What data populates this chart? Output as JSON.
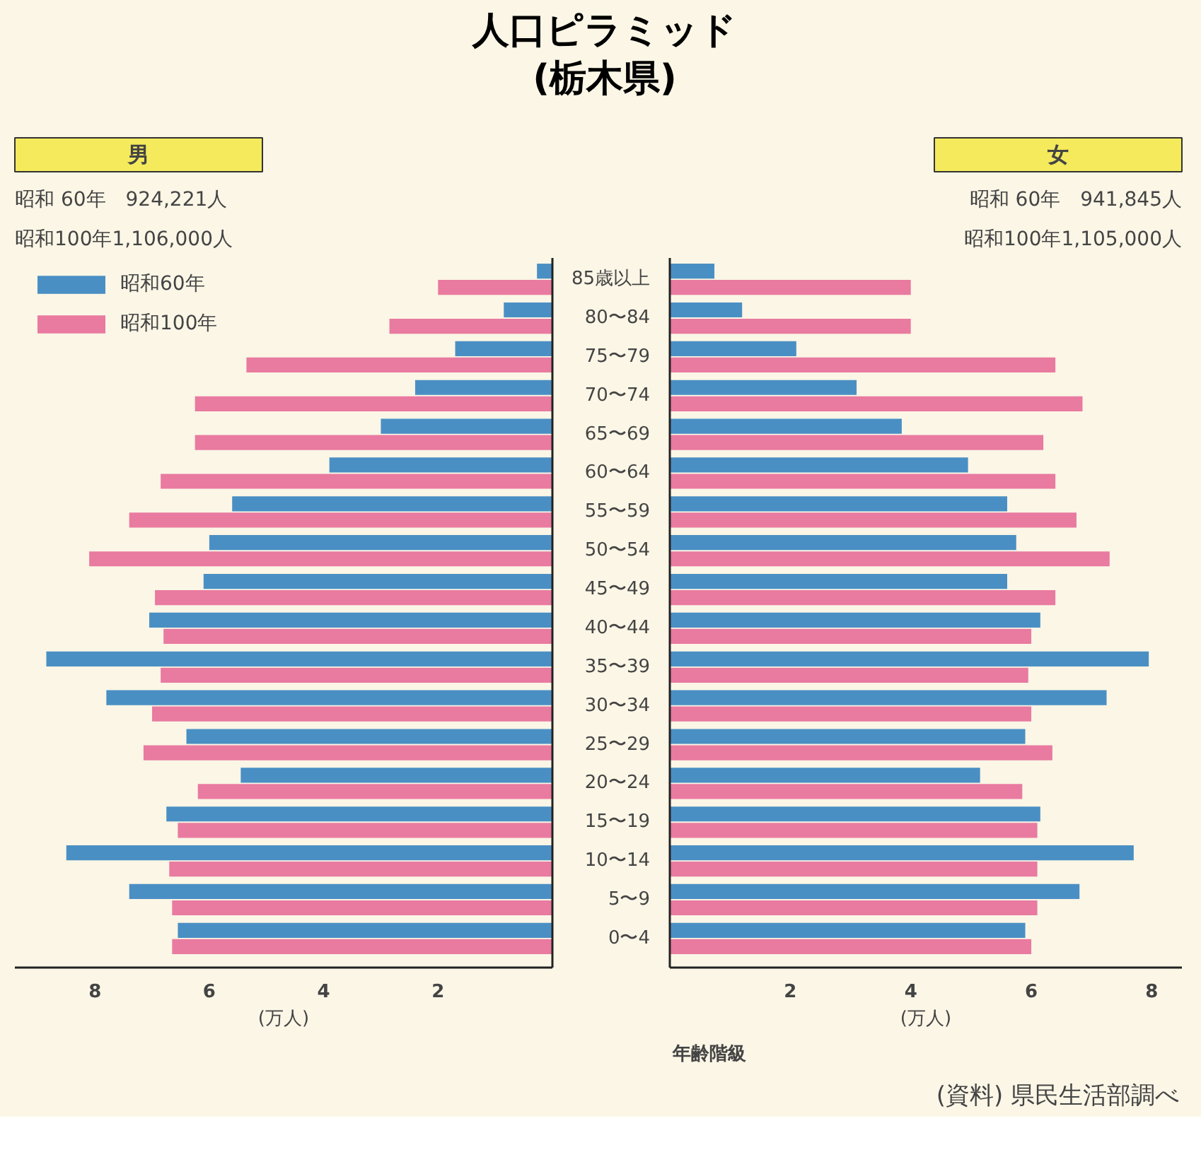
{
  "chart_data": [
    {
      "type": "bar",
      "orientation": "horizontal",
      "title": "人口ピラミッド",
      "subtitle": "(栃木県)",
      "annotations": [
        "男",
        "昭和 60年　924,221人",
        "昭和100年1,106,000人"
      ],
      "categories": [
        null,
        null,
        null,
        null,
        null,
        null,
        null,
        null,
        null,
        null,
        null,
        null,
        null,
        null,
        null,
        null,
        null,
        null
      ],
      "series": [
        {
          "name": "昭和60年",
          "color": "#4a8fc4",
          "values": [
            0.27,
            0.85,
            1.7,
            2.4,
            3.0,
            3.9,
            5.6,
            6.0,
            6.1,
            7.05,
            8.85,
            7.8,
            6.4,
            5.45,
            6.75,
            8.5,
            7.4,
            6.55
          ]
        },
        {
          "name": "昭和100年",
          "color": "#e97aa0",
          "values": [
            2.0,
            2.85,
            5.35,
            6.25,
            6.25,
            6.85,
            7.4,
            8.1,
            6.95,
            6.8,
            6.85,
            7.0,
            7.15,
            6.2,
            6.55,
            6.7,
            6.65,
            6.65
          ]
        }
      ],
      "xlim": [
        9.4,
        0
      ],
      "xticks": [
        8,
        6,
        4,
        2
      ],
      "xlabel": "(万人)",
      "legend": "top left",
      "tick_labels": "x"
    },
    {
      "type": "bar",
      "orientation": "horizontal",
      "annotations": [
        "女",
        "昭和 60年　941,845人",
        "昭和100年1,105,000人",
        "年齢階級",
        "(資料) 県民生活部調べ"
      ],
      "categories": [
        "85歳以上",
        "80〜84",
        "75〜79",
        "70〜74",
        "65〜69",
        "60〜64",
        "55〜59",
        "50〜54",
        "45〜49",
        "40〜44",
        "35〜39",
        "30〜34",
        "25〜29",
        "20〜24",
        "15〜19",
        "10〜14",
        "5〜9",
        "0〜4"
      ],
      "series": [
        {
          "color": "#4a8fc4",
          "values": [
            0.74,
            1.2,
            2.1,
            3.1,
            3.85,
            4.95,
            5.6,
            5.75,
            5.6,
            6.15,
            7.95,
            7.25,
            5.9,
            5.15,
            6.15,
            7.7,
            6.8,
            5.9
          ]
        },
        {
          "color": "#e97aa0",
          "values": [
            4.0,
            4.0,
            6.4,
            6.85,
            6.2,
            6.4,
            6.75,
            7.3,
            6.4,
            6.0,
            5.95,
            6.0,
            6.35,
            5.85,
            6.1,
            6.1,
            6.1,
            6.0
          ]
        }
      ],
      "xlim": [
        0,
        8.5
      ],
      "xticks": [
        2,
        4,
        6,
        8
      ],
      "xlabel": "(万人)"
    }
  ]
}
